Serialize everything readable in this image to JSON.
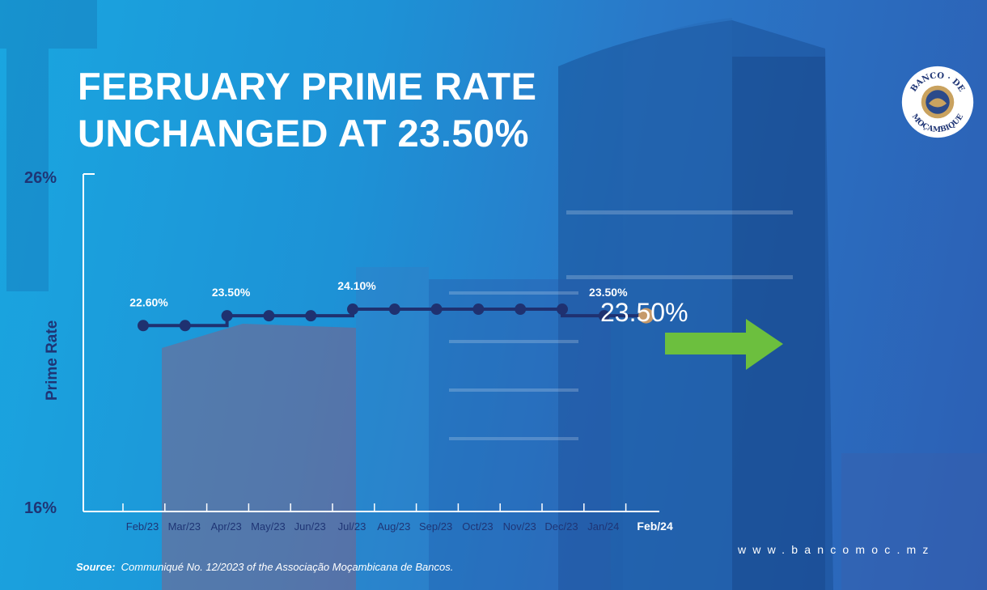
{
  "headline": {
    "line1": "FEBRUARY PRIME RATE",
    "line2": "UNCHANGED AT 23.50%"
  },
  "highlight": {
    "value_label": "23.50%",
    "arrow_icon": "right-arrow-icon",
    "arrow_color": "#6cbf3e",
    "current_point_color": "#c69a6a"
  },
  "brand": {
    "logo_icon": "banco-de-mocambique-seal-icon",
    "logo_text": [
      "BANCO",
      "DE",
      "MOÇAMBIQUE"
    ],
    "website": "www.bancomoc.mz"
  },
  "source": {
    "label": "Source",
    "text": "Communiqué No. 12/2023 of the Associação Moçambicana de Bancos."
  },
  "chart_data": {
    "type": "line",
    "step": true,
    "ylabel": "Prime Rate",
    "ylim": [
      16,
      26
    ],
    "ytick_labels": [
      "26%",
      "16%"
    ],
    "categories": [
      "Feb/23",
      "Mar/23",
      "Apr/23",
      "May/23",
      "Jun/23",
      "Jul/23",
      "Aug/23",
      "Sep/23",
      "Oct/23",
      "Nov/23",
      "Dec/23",
      "Jan/24",
      "Feb/24"
    ],
    "highlight_category": "Feb/24",
    "series": [
      {
        "values": [
          22.6,
          22.6,
          23.5,
          23.5,
          23.5,
          24.1,
          24.1,
          24.1,
          24.1,
          24.1,
          24.1,
          23.5,
          23.5
        ]
      }
    ],
    "annotations": [
      {
        "index": 0,
        "text": "22.60%"
      },
      {
        "index": 2,
        "text": "23.50%"
      },
      {
        "index": 5,
        "text": "24.10%"
      },
      {
        "index": 11,
        "text": "23.50%"
      }
    ],
    "line_color": "#1f3170",
    "grid": false
  }
}
